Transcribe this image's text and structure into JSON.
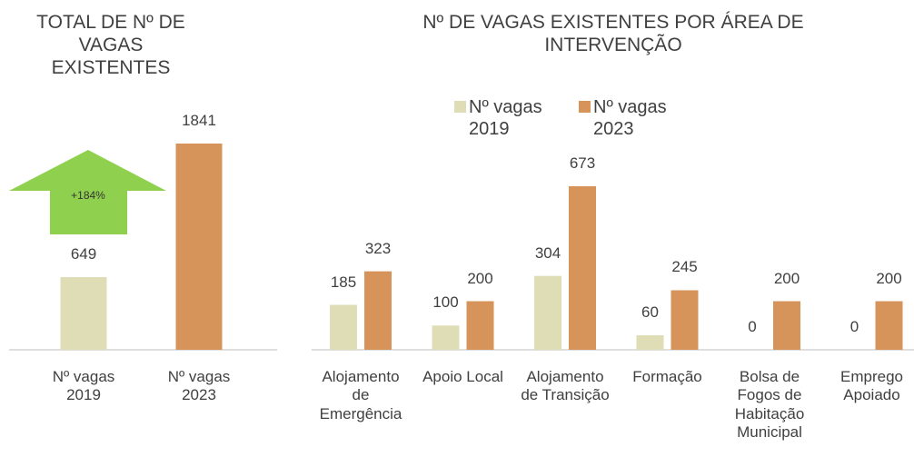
{
  "chart_data": [
    {
      "type": "bar",
      "title": "TOTAL DE Nº DE VAGAS EXISTENTES",
      "categories": [
        "Nº vagas 2019",
        "Nº vagas 2023"
      ],
      "values": [
        649,
        1841
      ],
      "colors": [
        "#dfddb6",
        "#d6935a"
      ],
      "annotation": "+184%",
      "annotation_color": "#8fd14f"
    },
    {
      "type": "grouped_bar",
      "title": "Nº DE VAGAS EXISTENTES POR ÁREA DE INTERVENÇÃO",
      "categories": [
        "Alojamento de Emergência",
        "Apoio Local",
        "Alojamento de Transição",
        "Formação",
        "Bolsa de Fogos de Habitação Municipal",
        "Emprego Apoiado"
      ],
      "series": [
        {
          "name": "Nº vagas 2019",
          "color": "#dfddb6",
          "values": [
            185,
            100,
            304,
            60,
            0,
            0
          ]
        },
        {
          "name": "Nº vagas 2023",
          "color": "#d6935a",
          "values": [
            323,
            200,
            673,
            245,
            200,
            200
          ]
        }
      ],
      "legend": "top"
    }
  ]
}
